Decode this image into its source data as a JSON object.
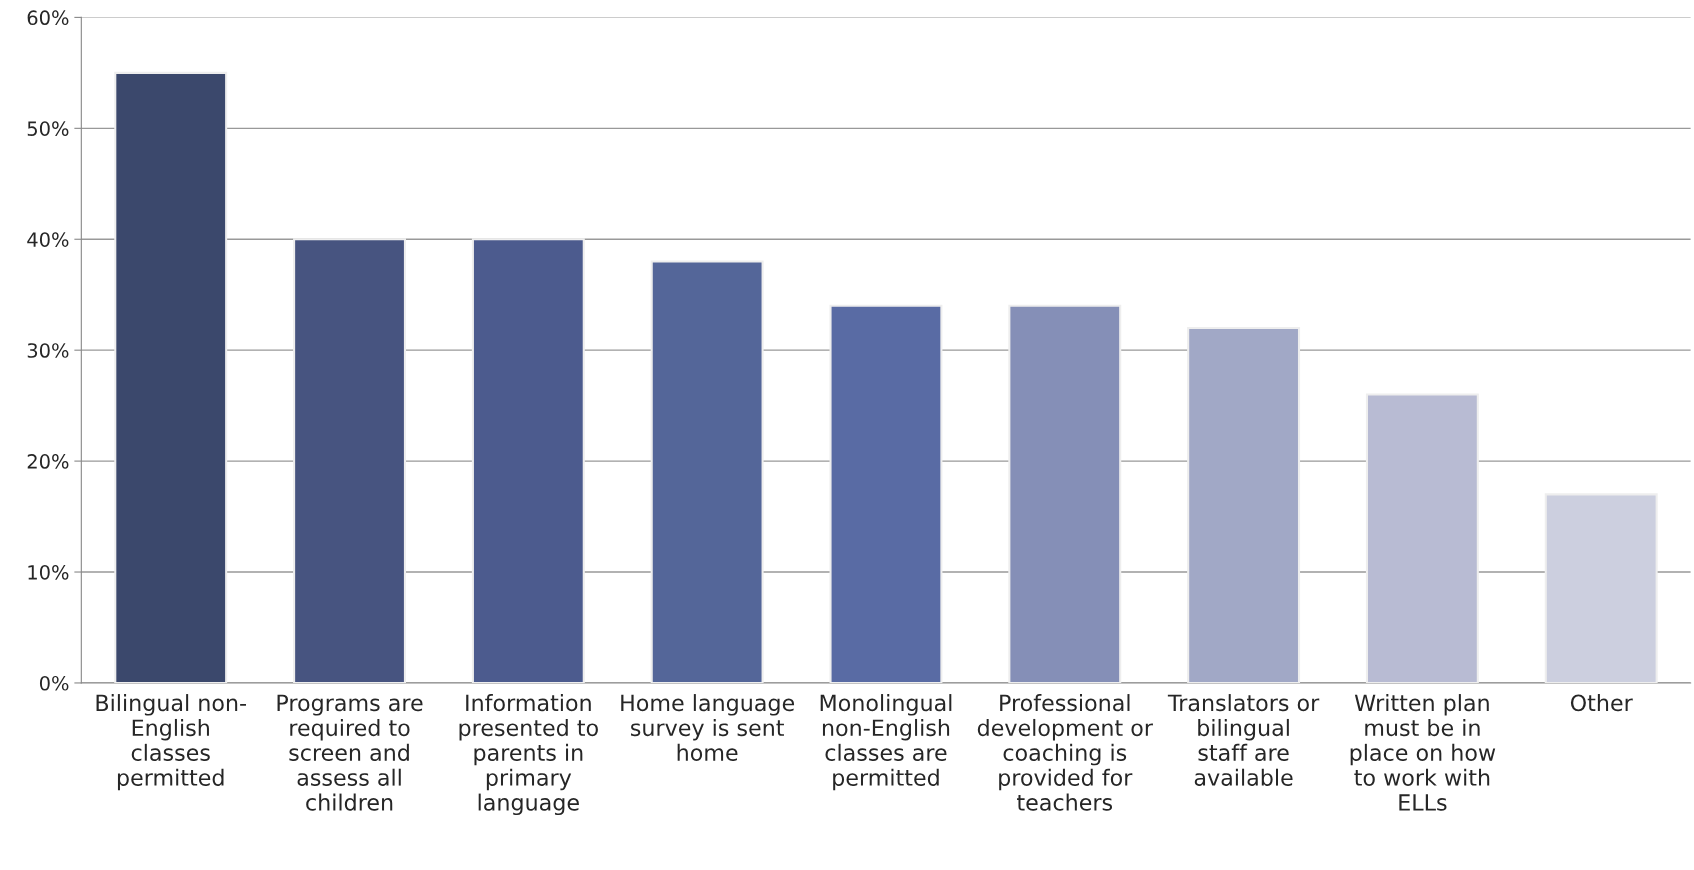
{
  "chart_data": {
    "type": "bar",
    "categories": [
      "Bilingual non-English classes permitted",
      "Programs are required to screen and assess all children",
      "Information presented to parents in primary language",
      "Home language survey is sent home",
      "Monolingual non-English classes are permitted",
      "Professional development or coaching is provided for teachers",
      "Translators or bilingual staff are available",
      "Written plan must be in place on how to work with ELLs",
      "Other"
    ],
    "values": [
      55,
      40,
      40,
      38,
      34,
      34,
      32,
      26,
      17
    ],
    "colors": [
      "#334474",
      "#3d4f8a",
      "#415599",
      "#4860a5",
      "#4d65b0",
      "#7d8abf",
      "#9ba4cc",
      "#b3b8d8",
      "#c9cde2"
    ],
    "ylim": [
      0,
      60
    ],
    "yticks": [
      {
        "value": 0,
        "label": "0%"
      },
      {
        "value": 10,
        "label": "10%"
      },
      {
        "value": 20,
        "label": "20%"
      },
      {
        "value": 30,
        "label": "30%"
      },
      {
        "value": 40,
        "label": "40%"
      },
      {
        "value": 50,
        "label": "50%"
      },
      {
        "value": 60,
        "label": "60%"
      }
    ],
    "grid": "y",
    "legend": false
  }
}
